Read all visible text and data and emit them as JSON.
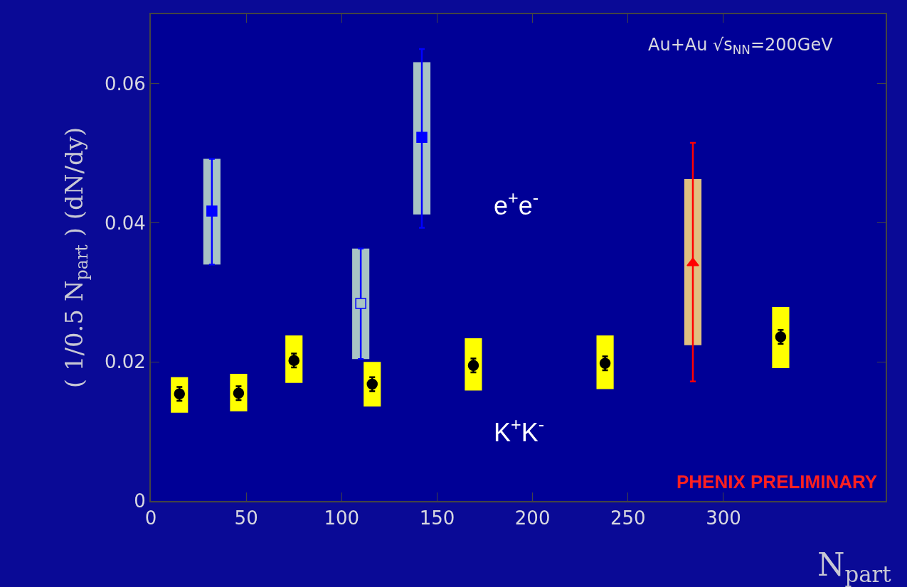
{
  "chart_data": {
    "type": "scatter",
    "xlabel": "N$_{part}$",
    "ylabel": "( 1/0.5 N$_{part}$ ) (dN/dy)",
    "xlim": [
      0,
      385
    ],
    "xticks": [
      0,
      50,
      100,
      150,
      200,
      250,
      300
    ],
    "ylim": [
      0,
      0.07
    ],
    "yticks": [
      0,
      0.02,
      0.04,
      0.06
    ],
    "grid": false,
    "series": [
      {
        "type": "bar",
        "x": [
          15,
          46,
          75,
          116,
          169,
          238,
          330
        ],
        "base": [
          0.0127,
          0.0129,
          0.017,
          0.0136,
          0.0159,
          0.0161,
          0.0191
        ],
        "values": [
          0.0051,
          0.0054,
          0.0068,
          0.0064,
          0.0075,
          0.0077,
          0.0088
        ],
        "color": "#ffff00"
      },
      {
        "type": "bar",
        "x": [
          32,
          110,
          142
        ],
        "base": [
          0.034,
          0.0204,
          0.0412
        ],
        "values": [
          0.0152,
          0.0159,
          0.0219
        ],
        "color": "#a8c4c4"
      },
      {
        "type": "bar",
        "x": [
          284
        ],
        "base": [
          0.0224
        ],
        "values": [
          0.0239
        ],
        "color": "#e0c080"
      },
      {
        "marker": "circle",
        "x": [
          15,
          46,
          75,
          116,
          169,
          238,
          330
        ],
        "values": [
          0.0154,
          0.0155,
          0.0202,
          0.0168,
          0.0195,
          0.0198,
          0.0236
        ],
        "errors": [
          0.001,
          0.001,
          0.001,
          0.001,
          0.001,
          0.001,
          0.001
        ],
        "color": "#000000"
      },
      {
        "marker": "square",
        "x": [
          32,
          110,
          142
        ],
        "values": [
          0.0417,
          0.0284,
          0.0523
        ],
        "errors": [
          [
            0.034,
            0.0492
          ],
          [
            0.0204,
            0.0363
          ],
          [
            0.0393,
            0.065
          ]
        ],
        "color": "#0000ff",
        "colors": [
          "#0000ff",
          "#a8c4c4",
          "#0000ff"
        ]
      },
      {
        "marker": "triangle",
        "x": [
          284
        ],
        "values": [
          0.0342
        ],
        "errors": [
          [
            0.0172,
            0.0515
          ]
        ],
        "color": "#ff0000"
      }
    ],
    "annotations": [
      "e$^{+}$e$^{-}$",
      "K$^{+}$K$^{-}$",
      "Au+Au √s$_{NN}$=200GeV",
      "PHENIX PRELIMINARY"
    ]
  }
}
